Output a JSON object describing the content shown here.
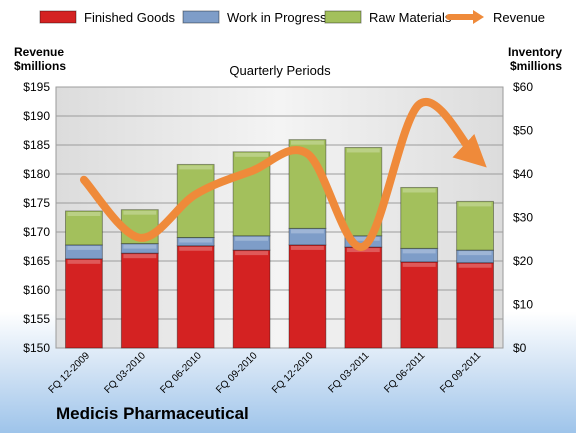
{
  "chart_data": {
    "type": "bar",
    "title": "Quarterly Periods",
    "company": "Medicis Pharmaceutical",
    "left_axis_label": [
      "Revenue",
      "$millions"
    ],
    "right_axis_label": [
      "Inventory",
      "$millions"
    ],
    "categories": [
      "FQ 12-2009",
      "FQ 03-2010",
      "FQ 06-2010",
      "FQ 09-2010",
      "FQ 12-2010",
      "FQ 03-2011",
      "FQ 06-2011",
      "FQ 09-2011"
    ],
    "stacked": true,
    "series": [
      {
        "name": "Finished Goods",
        "axis": "right",
        "color": "#d42222",
        "values": [
          20.5,
          21.8,
          23.5,
          22.5,
          23.7,
          23.2,
          19.8,
          19.6
        ]
      },
      {
        "name": "Work in Progress",
        "axis": "right",
        "color": "#7e9dc8",
        "values": [
          3.2,
          2.2,
          1.9,
          3.3,
          3.8,
          2.6,
          3.1,
          2.9
        ]
      },
      {
        "name": "Raw Materials",
        "axis": "right",
        "color": "#a3c05c",
        "values": [
          7.8,
          7.8,
          16.8,
          19.3,
          20.4,
          20.3,
          14.0,
          11.2
        ]
      },
      {
        "name": "Revenue",
        "axis": "left",
        "type": "line",
        "color": "#ef8a3a",
        "values": [
          179.0,
          169.0,
          176.5,
          180.5,
          183.5,
          167.5,
          192.0,
          183.0
        ]
      }
    ],
    "ylim_left": [
      150,
      195
    ],
    "yticks_left": [
      "$150",
      "$155",
      "$160",
      "$165",
      "$170",
      "$175",
      "$180",
      "$185",
      "$190",
      "$195"
    ],
    "ylim_right": [
      0,
      60
    ],
    "yticks_right": [
      "$0",
      "$10",
      "$20",
      "$30",
      "$40",
      "$50",
      "$60"
    ],
    "grid": "horizontal",
    "legend_position": "top"
  }
}
